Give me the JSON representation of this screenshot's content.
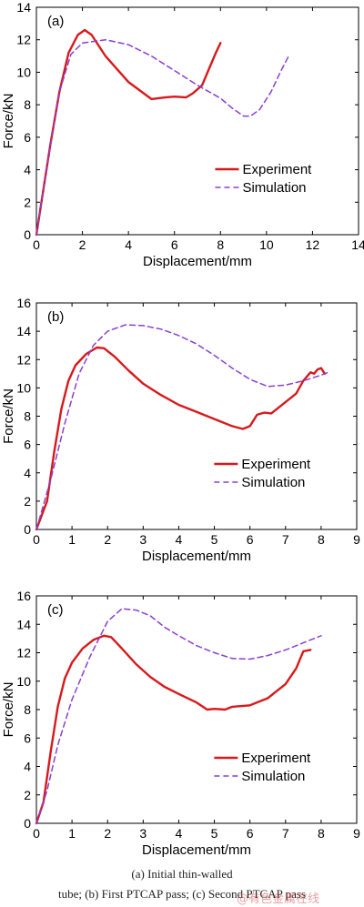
{
  "chart_data": [
    {
      "type": "line",
      "panel_label": "(a)",
      "xlabel": "Displacement/mm",
      "ylabel": "Force/kN",
      "xlim": [
        0,
        14
      ],
      "ylim": [
        0,
        14
      ],
      "xticks": [
        0,
        2,
        4,
        6,
        8,
        10,
        12,
        14
      ],
      "yticks": [
        0,
        2,
        4,
        6,
        8,
        10,
        12,
        14
      ],
      "legend": "lower-right",
      "series": [
        {
          "name": "Experiment",
          "color": "#d7191c",
          "style": "solid",
          "points": [
            [
              0,
              0
            ],
            [
              0.6,
              5.5
            ],
            [
              1.0,
              8.8
            ],
            [
              1.4,
              11.2
            ],
            [
              1.8,
              12.3
            ],
            [
              2.1,
              12.6
            ],
            [
              2.4,
              12.3
            ],
            [
              3.0,
              11.0
            ],
            [
              4.0,
              9.4
            ],
            [
              5.0,
              8.35
            ],
            [
              5.6,
              8.45
            ],
            [
              6.0,
              8.5
            ],
            [
              6.5,
              8.45
            ],
            [
              6.8,
              8.7
            ],
            [
              7.2,
              9.2
            ],
            [
              7.5,
              10.2
            ],
            [
              7.8,
              11.2
            ],
            [
              8.0,
              11.8
            ]
          ]
        },
        {
          "name": "Simulation",
          "color": "#8a3fd1",
          "style": "dashed",
          "points": [
            [
              0,
              0
            ],
            [
              0.5,
              4.5
            ],
            [
              1.0,
              8.8
            ],
            [
              1.5,
              11.1
            ],
            [
              2.0,
              11.8
            ],
            [
              3.0,
              12.0
            ],
            [
              4.0,
              11.7
            ],
            [
              5.0,
              11.0
            ],
            [
              6.0,
              10.1
            ],
            [
              7.0,
              9.2
            ],
            [
              8.0,
              8.4
            ],
            [
              8.5,
              7.8
            ],
            [
              9.0,
              7.3
            ],
            [
              9.3,
              7.3
            ],
            [
              9.7,
              7.7
            ],
            [
              10.2,
              8.8
            ],
            [
              10.6,
              10.0
            ],
            [
              11.0,
              11.1
            ]
          ]
        }
      ]
    },
    {
      "type": "line",
      "panel_label": "(b)",
      "xlabel": "Displacement/mm",
      "ylabel": "Force/kN",
      "xlim": [
        0,
        9
      ],
      "ylim": [
        0,
        16
      ],
      "xticks": [
        0,
        1,
        2,
        3,
        4,
        5,
        6,
        7,
        8,
        9
      ],
      "yticks": [
        0,
        2,
        4,
        6,
        8,
        10,
        12,
        14,
        16
      ],
      "legend": "lower-right",
      "series": [
        {
          "name": "Experiment",
          "color": "#d7191c",
          "style": "solid",
          "points": [
            [
              0,
              0
            ],
            [
              0.3,
              2.0
            ],
            [
              0.5,
              5.5
            ],
            [
              0.7,
              8.5
            ],
            [
              0.9,
              10.5
            ],
            [
              1.1,
              11.6
            ],
            [
              1.4,
              12.4
            ],
            [
              1.7,
              12.85
            ],
            [
              1.9,
              12.8
            ],
            [
              2.2,
              12.2
            ],
            [
              2.6,
              11.2
            ],
            [
              3.0,
              10.3
            ],
            [
              3.5,
              9.5
            ],
            [
              4.0,
              8.8
            ],
            [
              4.5,
              8.3
            ],
            [
              5.0,
              7.8
            ],
            [
              5.5,
              7.3
            ],
            [
              5.8,
              7.1
            ],
            [
              6.0,
              7.3
            ],
            [
              6.2,
              8.1
            ],
            [
              6.4,
              8.25
            ],
            [
              6.6,
              8.2
            ],
            [
              6.8,
              8.6
            ],
            [
              7.0,
              9.0
            ],
            [
              7.3,
              9.6
            ],
            [
              7.5,
              10.5
            ],
            [
              7.7,
              11.1
            ],
            [
              7.8,
              11.0
            ],
            [
              7.9,
              11.3
            ],
            [
              8.0,
              11.4
            ],
            [
              8.1,
              11.0
            ]
          ]
        },
        {
          "name": "Simulation",
          "color": "#8a3fd1",
          "style": "dashed",
          "points": [
            [
              0,
              0
            ],
            [
              0.4,
              3.5
            ],
            [
              0.8,
              7.5
            ],
            [
              1.2,
              11.0
            ],
            [
              1.6,
              13.0
            ],
            [
              2.0,
              14.0
            ],
            [
              2.5,
              14.45
            ],
            [
              3.0,
              14.4
            ],
            [
              3.5,
              14.15
            ],
            [
              4.0,
              13.7
            ],
            [
              4.5,
              13.1
            ],
            [
              5.0,
              12.3
            ],
            [
              5.5,
              11.4
            ],
            [
              6.0,
              10.6
            ],
            [
              6.5,
              10.1
            ],
            [
              7.0,
              10.2
            ],
            [
              7.5,
              10.5
            ],
            [
              8.0,
              10.9
            ],
            [
              8.2,
              11.1
            ]
          ]
        }
      ]
    },
    {
      "type": "line",
      "panel_label": "(c)",
      "xlabel": "Displacement/mm",
      "ylabel": "Force/kN",
      "xlim": [
        0,
        9
      ],
      "ylim": [
        0,
        16
      ],
      "xticks": [
        0,
        1,
        2,
        3,
        4,
        5,
        6,
        7,
        8,
        9
      ],
      "yticks": [
        0,
        2,
        4,
        6,
        8,
        10,
        12,
        14,
        16
      ],
      "legend": "lower-right",
      "series": [
        {
          "name": "Experiment",
          "color": "#d7191c",
          "style": "solid",
          "points": [
            [
              0,
              0
            ],
            [
              0.2,
              1.5
            ],
            [
              0.4,
              5.0
            ],
            [
              0.6,
              8.2
            ],
            [
              0.8,
              10.2
            ],
            [
              1.0,
              11.3
            ],
            [
              1.3,
              12.3
            ],
            [
              1.6,
              12.9
            ],
            [
              1.9,
              13.2
            ],
            [
              2.1,
              13.1
            ],
            [
              2.4,
              12.3
            ],
            [
              2.8,
              11.2
            ],
            [
              3.2,
              10.3
            ],
            [
              3.6,
              9.6
            ],
            [
              4.0,
              9.1
            ],
            [
              4.5,
              8.5
            ],
            [
              4.8,
              8.0
            ],
            [
              5.0,
              8.05
            ],
            [
              5.3,
              8.0
            ],
            [
              5.5,
              8.2
            ],
            [
              6.0,
              8.3
            ],
            [
              6.5,
              8.8
            ],
            [
              7.0,
              9.8
            ],
            [
              7.3,
              10.9
            ],
            [
              7.5,
              12.1
            ],
            [
              7.7,
              12.2
            ]
          ]
        },
        {
          "name": "Simulation",
          "color": "#8a3fd1",
          "style": "dashed",
          "points": [
            [
              0,
              0
            ],
            [
              0.3,
              2.3
            ],
            [
              0.6,
              5.5
            ],
            [
              1.0,
              8.7
            ],
            [
              1.5,
              11.7
            ],
            [
              2.0,
              14.2
            ],
            [
              2.4,
              15.1
            ],
            [
              2.8,
              15.0
            ],
            [
              3.2,
              14.6
            ],
            [
              3.6,
              13.8
            ],
            [
              4.0,
              13.2
            ],
            [
              4.5,
              12.5
            ],
            [
              5.0,
              12.0
            ],
            [
              5.5,
              11.6
            ],
            [
              6.0,
              11.55
            ],
            [
              6.5,
              11.8
            ],
            [
              7.0,
              12.2
            ],
            [
              7.5,
              12.7
            ],
            [
              8.0,
              13.2
            ]
          ]
        }
      ]
    }
  ],
  "caption": {
    "line1": "(a)  Initial  thin-walled",
    "line2": "tube; (b) First PTCAP pass; (c) Second PTCAP pass"
  },
  "watermark": "@有色金属在线"
}
